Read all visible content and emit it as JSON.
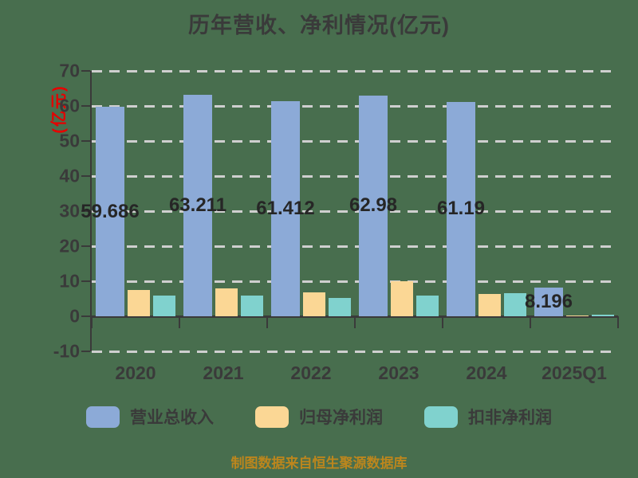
{
  "title": "历年营收、净利情况(亿元)",
  "ylabel": "(亿元)",
  "footer": "制图数据来自恒生聚源数据库",
  "colors": {
    "background": "#486E4E",
    "gridline": "#CFCFCF",
    "axis": "#3A3A3A",
    "title_text": "#3A3A3A",
    "ylabel_red": "#E60000",
    "footer_gold": "#BC861D",
    "bar_blue": "#8CAAD7",
    "bar_tan": "#FBD795",
    "bar_teal": "#80D2CE"
  },
  "chart_data": {
    "type": "bar",
    "title": "历年营收、净利情况(亿元)",
    "xlabel": "",
    "ylabel": "(亿元)",
    "categories": [
      "2020",
      "2021",
      "2022",
      "2023",
      "2024",
      "2025Q1"
    ],
    "series": [
      {
        "name": "营业总收入",
        "color": "#8CAAD7",
        "values": [
          59.686,
          63.211,
          61.412,
          62.98,
          61.19,
          8.196
        ]
      },
      {
        "name": "归母净利润",
        "color": "#FBD795",
        "values": [
          7.6,
          7.9,
          6.8,
          9.9,
          6.3,
          0.3
        ]
      },
      {
        "name": "扣非净利润",
        "color": "#80D2CE",
        "values": [
          5.9,
          5.8,
          5.3,
          5.9,
          6.5,
          0.4
        ]
      }
    ],
    "bar_labels": [
      "59.686",
      "63.211",
      "61.412",
      "62.98",
      "61.19",
      "8.196"
    ],
    "ylim": [
      -10,
      70
    ],
    "yticks": [
      70,
      60,
      50,
      40,
      30,
      20,
      10,
      0,
      -10
    ],
    "grid": "horizontal-dashed",
    "legend_position": "bottom",
    "source_note": "制图数据来自恒生聚源数据库"
  }
}
